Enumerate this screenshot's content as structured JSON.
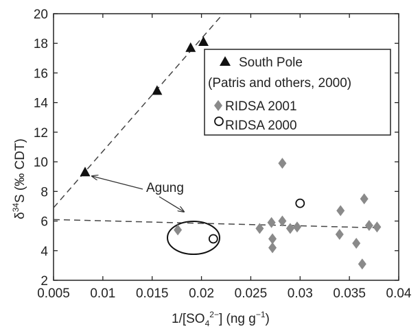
{
  "chart_data": {
    "type": "scatter",
    "title": "",
    "xlabel": "1/[SO4 2-] (ng g-1)",
    "ylabel": "δ34S (‰ CDT)",
    "xlim": [
      0.005,
      0.04
    ],
    "ylim": [
      2,
      20
    ],
    "xticks": [
      0.005,
      0.01,
      0.015,
      0.02,
      0.025,
      0.03,
      0.035,
      0.04
    ],
    "xtick_labels": [
      "0.005",
      "0.01",
      "0.015",
      "0.02",
      "0.025",
      "0.03",
      "0.035",
      "0.04"
    ],
    "yticks": [
      2,
      4,
      6,
      8,
      10,
      12,
      14,
      16,
      18,
      20
    ],
    "ytick_labels": [
      "2",
      "4",
      "6",
      "8",
      "10",
      "12",
      "14",
      "16",
      "18",
      "20"
    ],
    "grid": false,
    "legend": "top-right",
    "series": [
      {
        "name": "South Pole (Patris and others, 2000)",
        "legend_line1": "South Pole",
        "legend_line2": "(Patris and others, 2000)",
        "marker": "triangle",
        "color": "#111111",
        "points": [
          [
            0.0082,
            9.3
          ],
          [
            0.0155,
            14.8
          ],
          [
            0.0189,
            17.7
          ],
          [
            0.0202,
            18.1
          ]
        ]
      },
      {
        "name": "RIDSA 2001",
        "marker": "diamond",
        "color": "#8a8a8a",
        "points": [
          [
            0.0176,
            5.4
          ],
          [
            0.0259,
            5.5
          ],
          [
            0.0271,
            5.9
          ],
          [
            0.0272,
            4.8
          ],
          [
            0.0272,
            4.2
          ],
          [
            0.0282,
            9.9
          ],
          [
            0.0282,
            6.0
          ],
          [
            0.029,
            5.5
          ],
          [
            0.0297,
            5.6
          ],
          [
            0.0341,
            6.7
          ],
          [
            0.034,
            5.1
          ],
          [
            0.0357,
            4.5
          ],
          [
            0.0363,
            3.1
          ],
          [
            0.0365,
            7.5
          ],
          [
            0.037,
            5.7
          ],
          [
            0.0378,
            5.6
          ]
        ]
      },
      {
        "name": "RIDSA 2000",
        "marker": "circle",
        "color": "#111111",
        "points": [
          [
            0.0212,
            4.8
          ],
          [
            0.03,
            7.2
          ]
        ]
      }
    ],
    "trend_lines": [
      {
        "style": "dashed",
        "from": [
          0.005,
          6.9
        ],
        "to": [
          0.0222,
          20.0
        ]
      },
      {
        "style": "dashed",
        "from": [
          0.005,
          6.1
        ],
        "to": [
          0.0375,
          5.55
        ]
      }
    ],
    "annotations": [
      {
        "text": "Agung",
        "points_to": [
          [
            0.0082,
            9.3
          ],
          [
            0.0195,
            5.4
          ]
        ]
      }
    ]
  }
}
